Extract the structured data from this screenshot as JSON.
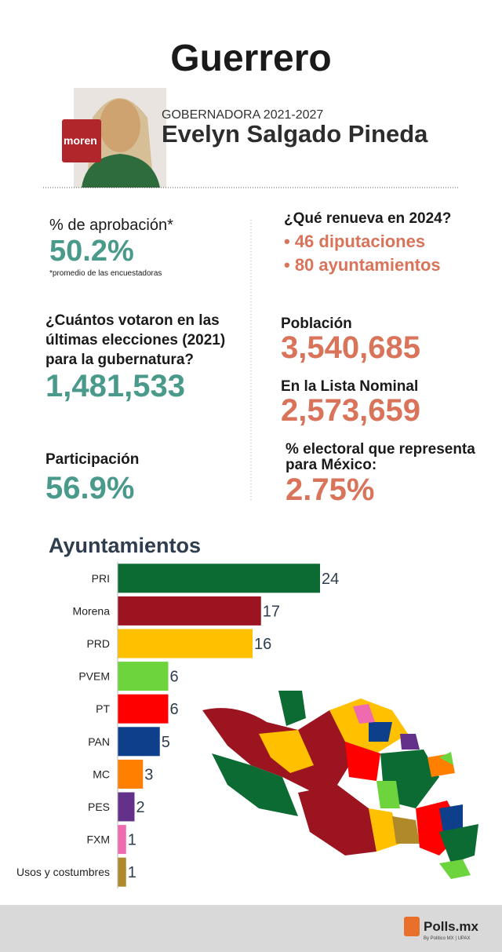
{
  "header": {
    "title": "Guerrero",
    "logo_text": "moren",
    "role": "GOBERNADORA 2021-2027",
    "name": "Evelyn Salgado Pineda"
  },
  "stats": {
    "approval_label": "% de aprobación*",
    "approval_value": "50.2%",
    "approval_note": "*promedio de las encuestadoras",
    "renew_title": "¿Qué renueva en 2024?",
    "renew_items": [
      "• 46 diputaciones",
      "• 80 ayuntamientos"
    ],
    "votes_label": [
      "¿Cuántos votaron en las",
      "últimas elecciones (2021)",
      "para la gubernatura?"
    ],
    "votes_value": "1,481,533",
    "participation_label": "Participación",
    "participation_value": "56.9%",
    "population_label": "Población",
    "population_value": "3,540,685",
    "nominal_label": "En la Lista Nominal",
    "nominal_value": "2,573,659",
    "share_label": [
      "% electoral que representa",
      "para México:"
    ],
    "share_value": "2.75%"
  },
  "chart_data": {
    "type": "bar",
    "orientation": "horizontal",
    "title": "Ayuntamientos",
    "categories": [
      "PRI",
      "Morena",
      "PRD",
      "PVEM",
      "PT",
      "PAN",
      "MC",
      "PES",
      "FXM",
      "Usos y costumbres"
    ],
    "values": [
      24,
      17,
      16,
      6,
      6,
      5,
      3,
      2,
      1,
      1
    ],
    "colors": [
      "#0b6b33",
      "#9b1420",
      "#ffc000",
      "#6dd43e",
      "#ff0000",
      "#0d3f8a",
      "#ff7f00",
      "#63308a",
      "#f06ab0",
      "#b08a2a"
    ]
  },
  "footer": {
    "brand": "Polls.mx",
    "tagline": "By Politico MX | UPAX"
  }
}
